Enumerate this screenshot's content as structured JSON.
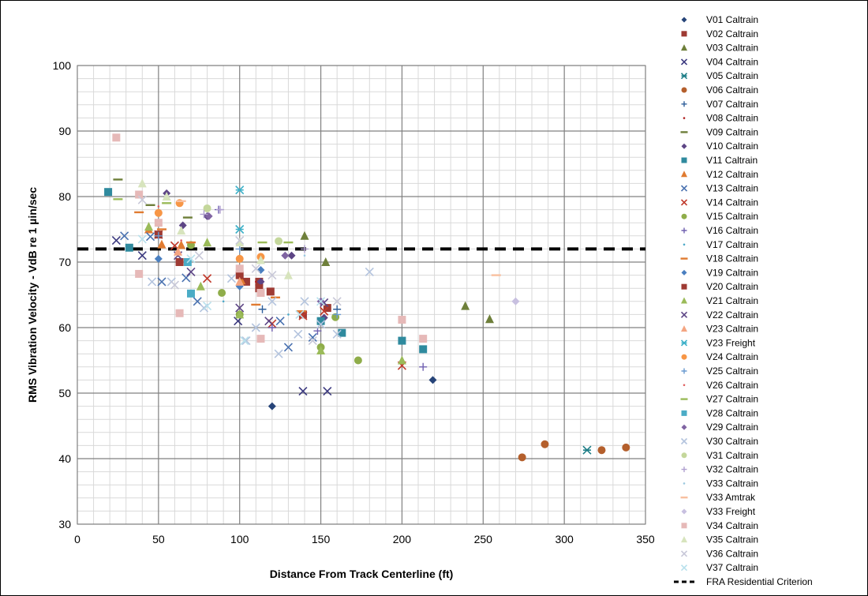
{
  "chart_data": {
    "type": "scatter",
    "title": "",
    "xlabel": "Distance From Track Centerline (ft)",
    "ylabel": "RMS Vibration Velocity - VdB re 1 µin/sec",
    "xlim": [
      0,
      350
    ],
    "ylim": [
      30,
      100
    ],
    "xticks": [
      "0",
      "50",
      "100",
      "150",
      "200",
      "250",
      "300",
      "350"
    ],
    "yticks": [
      "30",
      "40",
      "50",
      "60",
      "70",
      "80",
      "90",
      "100"
    ],
    "grid": true,
    "legend_position": "right",
    "series": [
      {
        "name": "V01 Caltrain",
        "marker": "diamond",
        "color": "#264478",
        "points": [
          [
            120,
            48
          ],
          [
            219,
            52
          ]
        ]
      },
      {
        "name": "V02 Caltrain",
        "marker": "square",
        "color": "#9e3a33",
        "points": [
          [
            104,
            67
          ],
          [
            112,
            67
          ],
          [
            119,
            65.5
          ],
          [
            139,
            62
          ],
          [
            154,
            63
          ]
        ]
      },
      {
        "name": "V03 Caltrain",
        "marker": "triangle",
        "color": "#6e7f3a",
        "points": [
          [
            140,
            74
          ],
          [
            153,
            70
          ],
          [
            239,
            63.3
          ],
          [
            254,
            61.3
          ]
        ]
      },
      {
        "name": "V04 Caltrain",
        "marker": "x",
        "color": "#3c3a80",
        "points": [
          [
            24,
            73.3
          ],
          [
            40,
            71
          ],
          [
            99,
            61
          ],
          [
            139,
            50.3
          ],
          [
            154,
            50.3
          ]
        ]
      },
      {
        "name": "V05 Caltrain",
        "marker": "asterisk",
        "color": "#1e7e87",
        "points": [
          [
            314,
            41.3
          ]
        ]
      },
      {
        "name": "V06 Caltrain",
        "marker": "circle",
        "color": "#b45f2c",
        "points": [
          [
            274,
            40.2
          ],
          [
            288,
            42.2
          ],
          [
            323,
            41.3
          ],
          [
            338,
            41.7
          ]
        ]
      },
      {
        "name": "V07 Caltrain",
        "marker": "plus",
        "color": "#2f5f9a",
        "points": [
          [
            114,
            62.8
          ],
          [
            160,
            62.8
          ]
        ]
      },
      {
        "name": "V08 Caltrain",
        "marker": "dot",
        "color": "#b02020",
        "points": [
          [
            110,
            67
          ]
        ]
      },
      {
        "name": "V09 Caltrain",
        "marker": "dash",
        "color": "#6e7f3a",
        "points": [
          [
            25,
            82.6
          ],
          [
            45,
            78.7
          ],
          [
            68,
            76.8
          ]
        ]
      },
      {
        "name": "V10 Caltrain",
        "marker": "diamond",
        "color": "#5d4585",
        "points": [
          [
            55,
            80.5
          ],
          [
            65,
            75.6
          ],
          [
            80,
            77
          ],
          [
            113,
            67
          ],
          [
            132,
            71
          ],
          [
            152,
            61.5
          ]
        ]
      },
      {
        "name": "V11 Caltrain",
        "marker": "square",
        "color": "#2f8a9e",
        "points": [
          [
            19,
            80.7
          ],
          [
            32,
            72.2
          ],
          [
            150,
            61
          ],
          [
            163,
            59.2
          ],
          [
            200,
            58
          ],
          [
            213,
            56.7
          ]
        ]
      },
      {
        "name": "V12 Caltrain",
        "marker": "triangle",
        "color": "#e07b31",
        "points": [
          [
            44,
            75
          ],
          [
            52,
            72.7
          ],
          [
            64,
            72.6
          ],
          [
            101,
            67.2
          ]
        ]
      },
      {
        "name": "V13 Caltrain",
        "marker": "x",
        "color": "#4a72b0",
        "points": [
          [
            29,
            74
          ],
          [
            45,
            73.9
          ],
          [
            52,
            67
          ],
          [
            67,
            67.6
          ],
          [
            74,
            64
          ],
          [
            125,
            61
          ],
          [
            130,
            57
          ],
          [
            145,
            58.5
          ]
        ]
      },
      {
        "name": "V14 Caltrain",
        "marker": "x",
        "color": "#c0392b",
        "points": [
          [
            50,
            74.2
          ],
          [
            60,
            72.5
          ],
          [
            80,
            67.5
          ],
          [
            120,
            60.6
          ],
          [
            139,
            61.8
          ],
          [
            152,
            62.5
          ],
          [
            200,
            54.2
          ]
        ]
      },
      {
        "name": "V15 Caltrain",
        "marker": "circle",
        "color": "#8fad4a",
        "points": [
          [
            70,
            72.6
          ],
          [
            89,
            65.3
          ],
          [
            100,
            62
          ],
          [
            150,
            57
          ],
          [
            159,
            61.6
          ],
          [
            173,
            55
          ]
        ]
      },
      {
        "name": "V16 Caltrain",
        "marker": "plus",
        "color": "#7060b0",
        "points": [
          [
            87,
            78
          ],
          [
            120,
            60
          ],
          [
            148,
            59.5
          ],
          [
            213,
            54
          ]
        ]
      },
      {
        "name": "V17 Caltrain",
        "marker": "dot",
        "color": "#4aa8c8",
        "points": [
          [
            90,
            64
          ],
          [
            130,
            62
          ]
        ]
      },
      {
        "name": "V18 Caltrain",
        "marker": "dash",
        "color": "#e07b31",
        "points": [
          [
            38,
            77.6
          ],
          [
            52,
            75
          ],
          [
            70,
            73
          ],
          [
            110,
            63.5
          ],
          [
            122,
            64.6
          ],
          [
            138,
            62.5
          ]
        ]
      },
      {
        "name": "V19 Caltrain",
        "marker": "diamond",
        "color": "#4a7fc0",
        "points": [
          [
            50,
            70.5
          ],
          [
            100,
            66.3
          ],
          [
            113,
            68.8
          ]
        ]
      },
      {
        "name": "V20 Caltrain",
        "marker": "square",
        "color": "#9e3a33",
        "points": [
          [
            50,
            74.2
          ],
          [
            63,
            70
          ],
          [
            100,
            68
          ],
          [
            112,
            66
          ]
        ]
      },
      {
        "name": "V21 Caltrain",
        "marker": "triangle",
        "color": "#9bbb59",
        "points": [
          [
            44,
            75.4
          ],
          [
            76,
            66.3
          ],
          [
            80,
            73
          ],
          [
            100,
            62
          ],
          [
            150,
            56.5
          ],
          [
            200,
            55
          ]
        ]
      },
      {
        "name": "V22 Caltrain",
        "marker": "x",
        "color": "#5d4585",
        "points": [
          [
            62,
            71
          ],
          [
            70,
            68.5
          ],
          [
            100,
            63
          ],
          [
            118,
            61
          ],
          [
            152,
            63.8
          ]
        ]
      },
      {
        "name": "V23 Caltrain",
        "marker": "triangle",
        "color": "#f4a582",
        "points": [
          [
            62,
            71.6
          ],
          [
            100,
            67
          ]
        ]
      },
      {
        "name": "V23 Freight",
        "marker": "asterisk",
        "color": "#3cb0c8",
        "points": [
          [
            100,
            81
          ],
          [
            100,
            75
          ]
        ]
      },
      {
        "name": "V24 Caltrain",
        "marker": "circle",
        "color": "#f79646",
        "points": [
          [
            50,
            77.5
          ],
          [
            63,
            79
          ],
          [
            100,
            70.5
          ],
          [
            113,
            70.8
          ]
        ]
      },
      {
        "name": "V25 Caltrain",
        "marker": "plus",
        "color": "#6a9ad0",
        "points": [
          [
            50,
            74
          ],
          [
            100,
            72
          ],
          [
            160,
            62
          ]
        ]
      },
      {
        "name": "V26 Caltrain",
        "marker": "dot",
        "color": "#e06060",
        "points": [
          [
            50,
            78.5
          ],
          [
            64,
            73.3
          ]
        ]
      },
      {
        "name": "V27 Caltrain",
        "marker": "dash",
        "color": "#9bbb59",
        "points": [
          [
            25,
            79.6
          ],
          [
            55,
            79
          ],
          [
            114,
            73
          ],
          [
            130,
            73
          ]
        ]
      },
      {
        "name": "V28 Caltrain",
        "marker": "square",
        "color": "#4bacc6",
        "points": [
          [
            68,
            70
          ],
          [
            70,
            65.2
          ]
        ]
      },
      {
        "name": "V29 Caltrain",
        "marker": "diamond",
        "color": "#8064a2",
        "points": [
          [
            81,
            77
          ],
          [
            128,
            71
          ],
          [
            150,
            64
          ]
        ]
      },
      {
        "name": "V30 Caltrain",
        "marker": "x",
        "color": "#b4c4de",
        "points": [
          [
            46,
            67
          ],
          [
            58,
            67
          ],
          [
            78,
            63
          ],
          [
            95,
            67.5
          ],
          [
            104,
            58
          ],
          [
            110,
            60
          ],
          [
            120,
            64
          ],
          [
            124,
            56
          ],
          [
            136,
            59
          ],
          [
            140,
            64
          ],
          [
            150,
            60.5
          ],
          [
            160,
            59
          ],
          [
            180,
            68.5
          ]
        ]
      },
      {
        "name": "V31 Caltrain",
        "marker": "circle",
        "color": "#c4d79b",
        "points": [
          [
            80,
            78.2
          ],
          [
            124,
            73.2
          ]
        ]
      },
      {
        "name": "V32 Caltrain",
        "marker": "plus",
        "color": "#b0a0d0",
        "points": [
          [
            78,
            77.3
          ],
          [
            88,
            78
          ],
          [
            140,
            72
          ]
        ]
      },
      {
        "name": "V33 Caltrain",
        "marker": "dot",
        "color": "#9cc8e0",
        "points": [
          [
            140,
            71
          ]
        ]
      },
      {
        "name": "V33 Amtrak",
        "marker": "dash",
        "color": "#f8c0a0",
        "points": [
          [
            64,
            79.3
          ],
          [
            258,
            68
          ]
        ]
      },
      {
        "name": "V33 Freight",
        "marker": "diamond",
        "color": "#c8c0e0",
        "points": [
          [
            270,
            64
          ]
        ]
      },
      {
        "name": "V34 Caltrain",
        "marker": "square",
        "color": "#e6b9b8",
        "points": [
          [
            24,
            89
          ],
          [
            38,
            80.3
          ],
          [
            38,
            68.2
          ],
          [
            50,
            76
          ],
          [
            63,
            62.2
          ],
          [
            100,
            69
          ],
          [
            113,
            65.3
          ],
          [
            113,
            58.3
          ],
          [
            200,
            61.2
          ],
          [
            213,
            58.3
          ]
        ]
      },
      {
        "name": "V35 Caltrain",
        "marker": "triangle",
        "color": "#d7e4bd",
        "points": [
          [
            40,
            82
          ],
          [
            55,
            80
          ],
          [
            64,
            74.8
          ],
          [
            100,
            73
          ],
          [
            113,
            70.3
          ],
          [
            130,
            68
          ]
        ]
      },
      {
        "name": "V36 Caltrain",
        "marker": "x",
        "color": "#c8c8d8",
        "points": [
          [
            40,
            79.5
          ],
          [
            60,
            66.5
          ],
          [
            75,
            71
          ],
          [
            100,
            73.3
          ],
          [
            110,
            69
          ],
          [
            120,
            68
          ],
          [
            145,
            58
          ],
          [
            160,
            64
          ]
        ]
      },
      {
        "name": "V37 Caltrain",
        "marker": "x",
        "color": "#b8e0ec",
        "points": [
          [
            40,
            73.5
          ],
          [
            70,
            70.5
          ],
          [
            80,
            63.3
          ],
          [
            103,
            58
          ],
          [
            137,
            62
          ],
          [
            150,
            64
          ]
        ]
      }
    ],
    "reference_line": {
      "name": "FRA Residential Criterion",
      "y": 72,
      "color": "#000000"
    }
  }
}
